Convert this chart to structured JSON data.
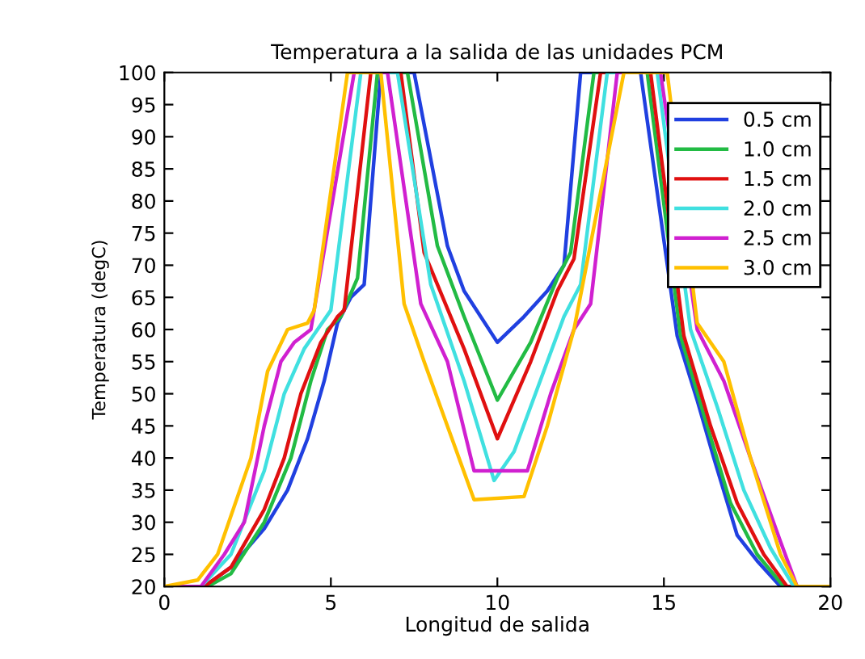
{
  "chart_data": {
    "type": "line",
    "title": "Temperatura a la salida de las unidades PCM",
    "xlabel": "Longitud de salida",
    "ylabel": "Temperatura (degC)",
    "xlim": [
      0,
      20
    ],
    "xticks": [
      0,
      5,
      10,
      15,
      20
    ],
    "ylim": [
      20,
      100
    ],
    "yticks": [
      20,
      25,
      30,
      35,
      40,
      45,
      50,
      55,
      60,
      65,
      70,
      75,
      80,
      85,
      90,
      95,
      100
    ],
    "grid": false,
    "legend": "top right",
    "marker": "none",
    "line_style": "solid",
    "series": [
      {
        "name": "0.5 cm",
        "color": "#2040e0",
        "x": [
          0,
          1.2,
          2.0,
          3.0,
          3.7,
          4.3,
          4.8,
          5.2,
          5.6,
          6.0,
          6.5,
          7.5,
          8.5,
          9.0,
          10.0,
          10.8,
          11.5,
          12.0,
          12.5,
          14.3,
          15.4,
          16.0,
          16.5,
          17.2,
          17.8,
          18.5,
          20
        ],
        "values": [
          20,
          20,
          23,
          29,
          35,
          43,
          52,
          61,
          65,
          67,
          100,
          100,
          73,
          66,
          58,
          62,
          66,
          70,
          100,
          100,
          59,
          49,
          40,
          28,
          24,
          20,
          20
        ]
      },
      {
        "name": "1.0 cm",
        "color": "#22bb44",
        "x": [
          0,
          1.3,
          2.0,
          3.0,
          3.8,
          4.4,
          4.9,
          5.3,
          5.8,
          6.4,
          7.3,
          8.2,
          9.0,
          10.0,
          11.0,
          11.8,
          12.2,
          12.9,
          14.5,
          15.5,
          16.3,
          17.0,
          17.8,
          18.6,
          20
        ],
        "values": [
          20,
          20,
          22,
          30,
          40,
          52,
          60,
          62,
          68,
          100,
          100,
          73,
          62,
          49,
          58,
          68,
          72,
          100,
          100,
          59,
          45,
          33,
          25,
          20,
          20
        ]
      },
      {
        "name": "1.5 cm",
        "color": "#e01010",
        "x": [
          0,
          1.2,
          2.0,
          3.0,
          3.6,
          4.1,
          4.7,
          5.2,
          5.4,
          6.2,
          7.1,
          7.8,
          9.0,
          10.0,
          11.0,
          11.8,
          12.3,
          13.1,
          14.6,
          15.6,
          16.4,
          17.2,
          18.0,
          18.7,
          20
        ],
        "values": [
          20,
          20,
          23,
          32,
          40,
          50,
          58,
          62,
          63,
          100,
          100,
          72,
          57,
          43,
          55,
          66,
          71,
          100,
          100,
          59,
          45,
          33,
          25,
          20,
          20
        ]
      },
      {
        "name": "2.0 cm",
        "color": "#40e0e0",
        "x": [
          0,
          1.1,
          2.0,
          3.0,
          3.6,
          4.2,
          4.6,
          5.0,
          5.9,
          7.0,
          8.0,
          9.0,
          9.9,
          10.5,
          11.5,
          12.0,
          12.5,
          13.3,
          14.8,
          15.8,
          16.6,
          17.4,
          18.2,
          18.9,
          20
        ],
        "values": [
          20,
          20,
          25,
          38,
          50,
          57,
          60,
          63,
          100,
          100,
          67,
          52,
          36.5,
          41,
          55,
          62,
          67,
          100,
          100,
          60,
          48,
          35,
          26,
          20,
          20
        ]
      },
      {
        "name": "2.5 cm",
        "color": "#d020d0",
        "x": [
          0,
          1.1,
          1.8,
          2.4,
          3.0,
          3.5,
          3.9,
          4.4,
          5.7,
          6.7,
          7.7,
          8.5,
          9.3,
          10.9,
          11.6,
          12.3,
          12.8,
          13.6,
          14.9,
          16.0,
          16.8,
          17.6,
          18.5,
          19.0,
          20
        ],
        "values": [
          20,
          20,
          25,
          30,
          45,
          55,
          58,
          60,
          100,
          100,
          64,
          55,
          38,
          38,
          50,
          60,
          64,
          100,
          100,
          60,
          52,
          40,
          27,
          20,
          20
        ]
      },
      {
        "name": "3.0 cm",
        "color": "#ffc000",
        "x": [
          0,
          1.0,
          1.6,
          2.6,
          3.1,
          3.7,
          4.3,
          4.5,
          5.5,
          6.5,
          7.2,
          7.8,
          9.3,
          10.8,
          11.5,
          12.3,
          13.8,
          15.1,
          16.0,
          16.8,
          17.6,
          18.5,
          19.0,
          20
        ],
        "values": [
          20,
          21,
          25,
          40,
          53.5,
          60,
          61,
          63,
          100,
          100,
          64,
          55,
          33.5,
          34,
          45,
          60,
          100,
          100,
          61,
          55,
          40,
          25,
          20,
          20
        ]
      }
    ]
  }
}
